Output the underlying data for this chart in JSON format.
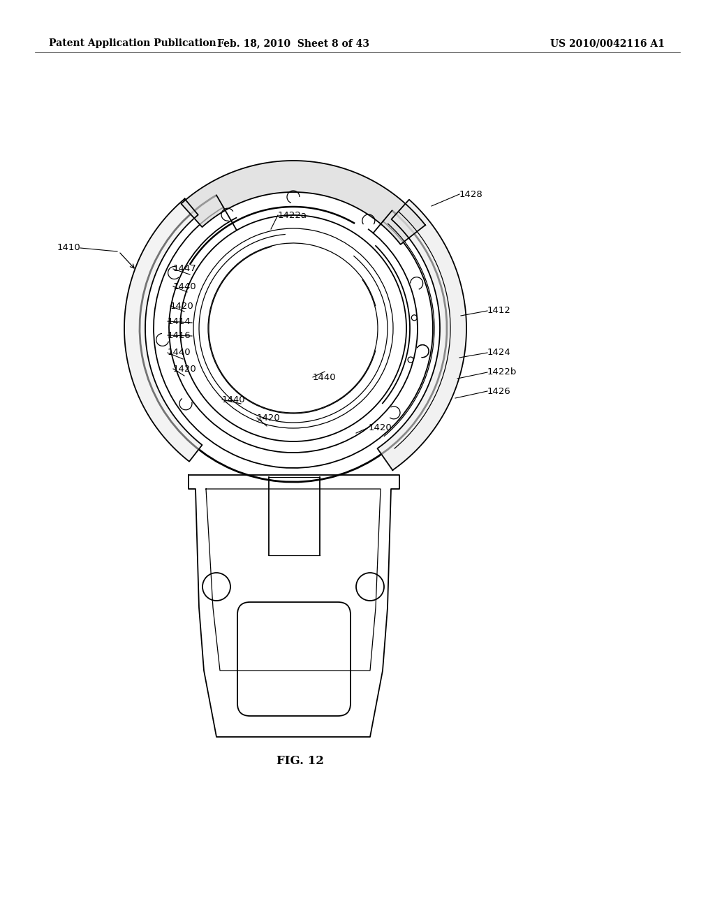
{
  "background_color": "#ffffff",
  "title_left": "Patent Application Publication",
  "title_center": "Feb. 18, 2010  Sheet 8 of 43",
  "title_right": "US 2010/0042116 A1",
  "fig_label": "FIG. 12",
  "header_fontsize": 10,
  "label_fontsize": 9.5,
  "fig_label_fontsize": 12
}
